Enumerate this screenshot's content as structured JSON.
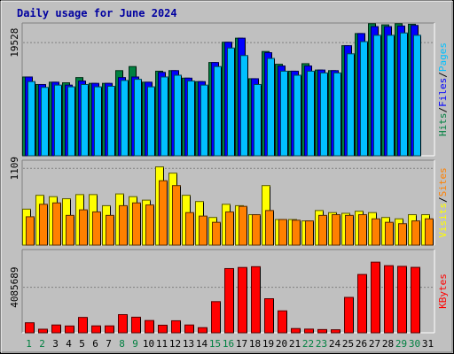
{
  "chart_data": {
    "type": "bar",
    "title": "Daily usage for June 2024",
    "colors": {
      "background": "#c0c0c0",
      "plot": "#c0c0c0",
      "title": "#0000a0",
      "hits": "#008040",
      "files": "#0000ff",
      "pages": "#00c0ff",
      "visits": "#ffff00",
      "sites": "#ff8000",
      "kbytes": "#ff0000",
      "weekend_label": "#008040",
      "weekday_label": "#000000"
    },
    "x": [
      "1",
      "2",
      "3",
      "4",
      "5",
      "6",
      "7",
      "8",
      "9",
      "10",
      "11",
      "12",
      "13",
      "14",
      "15",
      "16",
      "17",
      "18",
      "19",
      "20",
      "21",
      "22",
      "23",
      "24",
      "25",
      "26",
      "27",
      "28",
      "29",
      "30",
      "31"
    ],
    "weekend_days": [
      "1",
      "2",
      "8",
      "9",
      "15",
      "16",
      "22",
      "23",
      "29",
      "30"
    ],
    "panels": [
      {
        "id": "top",
        "ytick": "19528",
        "ymax": 22000,
        "series_labels": [
          {
            "text": "Hits",
            "color": "#008040"
          },
          {
            "text": "/",
            "color": "#000000"
          },
          {
            "text": "Files",
            "color": "#0000ff"
          },
          {
            "text": "/",
            "color": "#000000"
          },
          {
            "text": "Pages",
            "color": "#00c0ff"
          }
        ],
        "series": [
          {
            "name": "Hits",
            "color": "#008040",
            "values": [
              13600,
              12300,
              12700,
              12600,
              13500,
              12500,
              12500,
              14700,
              15400,
              12700,
              14600,
              14700,
              13400,
              12800,
              16100,
              19600,
              20300,
              13300,
              18000,
              15800,
              14600,
              15900,
              14800,
              14700,
              19000,
              21100,
              22800,
              22600,
              22800,
              22700,
              0
            ]
          },
          {
            "name": "Files",
            "color": "#0000ff",
            "values": [
              13600,
              12300,
              12700,
              12200,
              12900,
              12500,
              12500,
              13500,
              13600,
              12700,
              14400,
              14700,
              13400,
              12800,
              16100,
              19600,
              20300,
              13300,
              17800,
              15500,
              14600,
              15500,
              14800,
              14700,
              19000,
              21100,
              22300,
              22300,
              22400,
              22500,
              0
            ]
          },
          {
            "name": "Pages",
            "color": "#00c0ff",
            "values": [
              12800,
              11800,
              12200,
              11900,
              12300,
              11900,
              12000,
              13000,
              13200,
              11900,
              13600,
              13900,
              12900,
              12200,
              15400,
              18600,
              17300,
              12300,
              16800,
              14600,
              13900,
              14600,
              14300,
              14300,
              17600,
              19700,
              20800,
              20800,
              21200,
              20800,
              0
            ]
          }
        ]
      },
      {
        "id": "middle",
        "ytick": "1109",
        "ymax": 1150,
        "series_labels": [
          {
            "text": "Visits",
            "color": "#ffff00"
          },
          {
            "text": "/",
            "color": "#000000"
          },
          {
            "text": "Sites",
            "color": "#ff8000"
          }
        ],
        "series": [
          {
            "name": "Visits",
            "color": "#ffff00",
            "values": [
              520,
              720,
              700,
              670,
              730,
              730,
              570,
              740,
              700,
              650,
              1130,
              1040,
              720,
              630,
              400,
              590,
              570,
              440,
              860,
              370,
              370,
              350,
              500,
              470,
              460,
              490,
              470,
              400,
              380,
              440,
              440
            ]
          },
          {
            "name": "Sites",
            "color": "#ff8000",
            "values": [
              410,
              590,
              610,
              430,
              510,
              480,
              430,
              570,
              610,
              580,
              930,
              860,
              470,
              420,
              330,
              480,
              560,
              440,
              500,
              370,
              360,
              350,
              430,
              440,
              430,
              440,
              380,
              330,
              310,
              350,
              380
            ]
          }
        ]
      },
      {
        "id": "bottom",
        "ytick": "4085689",
        "ymax": 7000000,
        "series_labels": [
          {
            "text": "KBytes",
            "color": "#ff0000"
          }
        ],
        "series": [
          {
            "name": "KBytes",
            "color": "#ff0000",
            "values": [
              900000,
              320000,
              700000,
              610000,
              1380000,
              620000,
              620000,
              1630000,
              1400000,
              1100000,
              680000,
              1080000,
              700000,
              460000,
              2800000,
              5770000,
              5870000,
              5940000,
              3060000,
              1970000,
              380000,
              330000,
              290000,
              270000,
              3180000,
              5240000,
              6350000,
              6030000,
              5970000,
              5880000,
              0
            ]
          }
        ]
      }
    ]
  }
}
